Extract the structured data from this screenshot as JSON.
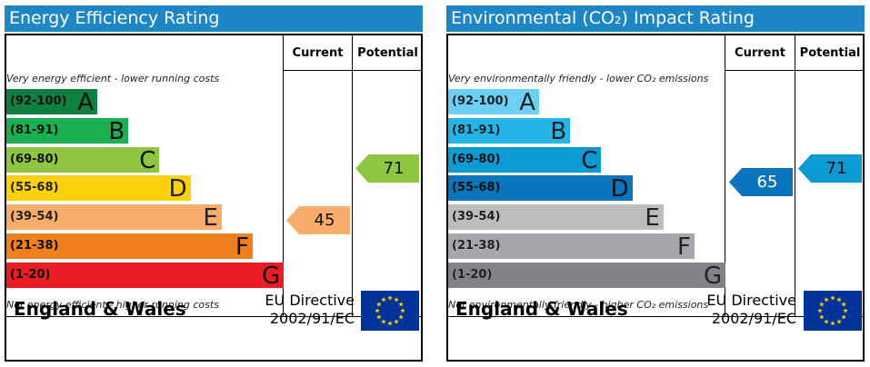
{
  "panels": [
    {
      "title": "Energy Efficiency Rating",
      "header_current": "Current",
      "header_potential": "Potential",
      "top_note": "Very energy efficient - lower running costs",
      "bottom_note": "Not energy efficient - higher running costs",
      "footer_region": "England & Wales",
      "directive_line1": "EU Directive",
      "directive_line2": "2002/91/EC",
      "colors": {
        "title_bg": "#1f86c6"
      }
    },
    {
      "title": "Environmental (CO₂) Impact Rating",
      "header_current": "Current",
      "header_potential": "Potential",
      "top_note": "Very environmentally friendly - lower CO₂ emissions",
      "bottom_note": "Not environmentally friendly - higher CO₂ emissions",
      "footer_region": "England & Wales",
      "directive_line1": "EU Directive",
      "directive_line2": "2002/91/EC",
      "colors": {
        "title_bg": "#1f86c6"
      }
    }
  ],
  "chart_data": [
    {
      "type": "bar",
      "title": "Energy Efficiency Rating",
      "categories": [
        "(92-100) A",
        "(81-91) B",
        "(69-80) C",
        "(55-68) D",
        "(39-54) E",
        "(21-38) F",
        "(1-20) G"
      ],
      "bands": [
        {
          "range": "(92-100)",
          "letter": "A",
          "color": "#0f8040"
        },
        {
          "range": "(81-91)",
          "letter": "B",
          "color": "#1bb152"
        },
        {
          "range": "(69-80)",
          "letter": "C",
          "color": "#8dc641"
        },
        {
          "range": "(55-68)",
          "letter": "D",
          "color": "#fdd10b"
        },
        {
          "range": "(39-54)",
          "letter": "E",
          "color": "#f9ad6a"
        },
        {
          "range": "(21-38)",
          "letter": "F",
          "color": "#f0801e"
        },
        {
          "range": "(1-20)",
          "letter": "G",
          "color": "#ea1c24"
        }
      ],
      "current": {
        "value": 45,
        "band": "E",
        "color": "#f9ad6a"
      },
      "potential": {
        "value": 71,
        "band": "C",
        "color": "#8dc641"
      }
    },
    {
      "type": "bar",
      "title": "Environmental (CO₂) Impact Rating",
      "categories": [
        "(92-100) A",
        "(81-91) B",
        "(69-80) C",
        "(55-68) D",
        "(39-54) E",
        "(21-38) F",
        "(1-20) G"
      ],
      "bands": [
        {
          "range": "(92-100)",
          "letter": "A",
          "color": "#6ccff6"
        },
        {
          "range": "(81-91)",
          "letter": "B",
          "color": "#23b5ea"
        },
        {
          "range": "(69-80)",
          "letter": "C",
          "color": "#0a9bd4"
        },
        {
          "range": "(55-68)",
          "letter": "D",
          "color": "#0a74bd"
        },
        {
          "range": "(39-54)",
          "letter": "E",
          "color": "#bbbdbf"
        },
        {
          "range": "(21-38)",
          "letter": "F",
          "color": "#a5a7aa"
        },
        {
          "range": "(1-20)",
          "letter": "G",
          "color": "#818386"
        }
      ],
      "current": {
        "value": 65,
        "band": "D",
        "color": "#0a74bd"
      },
      "potential": {
        "value": 71,
        "band": "C",
        "color": "#0a9bd4"
      }
    }
  ]
}
